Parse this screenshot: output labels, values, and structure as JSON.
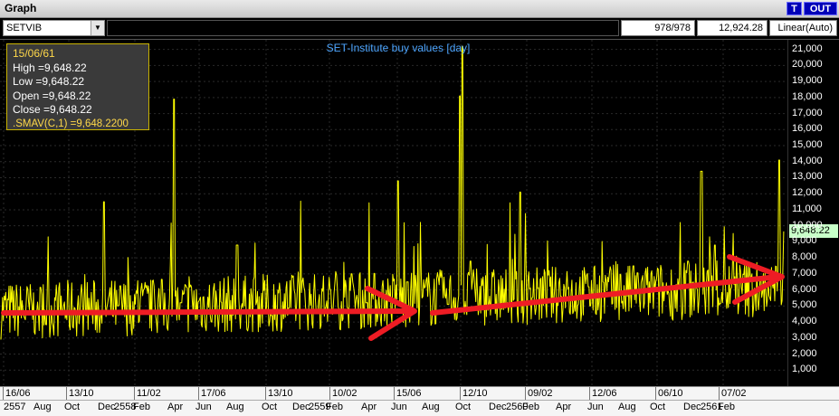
{
  "window": {
    "title": "Graph",
    "btn_t": "T",
    "btn_out": "OUT"
  },
  "toolbar": {
    "symbol": "SETVIB",
    "count": "978/978",
    "value": "12,924.28",
    "scale": "Linear(Auto)"
  },
  "info_box": {
    "date": "15/06/61",
    "high": "High  =9,648.22",
    "low": "Low  =9,648.22",
    "open": "Open  =9,648.22",
    "close": "Close  =9,648.22",
    "smav": ".SMAV(C,1)   =9,648.2200"
  },
  "colors": {
    "series": "#ffff00",
    "arrow": "#ee1c24",
    "title": "#4ea6ff",
    "last_value_bg": "#c8ffc8"
  },
  "chart_data": {
    "type": "line",
    "title": "SET-Institute buy values [day]",
    "ylim": [
      0,
      21600
    ],
    "y_ticks": [
      "1,000",
      "2,000",
      "3,000",
      "4,000",
      "5,000",
      "6,000",
      "7,000",
      "8,000",
      "9,000",
      "10,000",
      "11,000",
      "12,000",
      "13,000",
      "14,000",
      "15,000",
      "16,000",
      "17,000",
      "18,000",
      "19,000",
      "20,000",
      "21,000"
    ],
    "last_value": 9648.22,
    "last_value_label": "9,648.22",
    "x_labels_top": [
      "16/06",
      "13/10",
      "11/02",
      "17/06",
      "13/10",
      "10/02",
      "15/06",
      "12/10",
      "09/02",
      "12/06",
      "06/10",
      "07/02"
    ],
    "x_labels_bottom": [
      "2557",
      "Aug",
      "Oct",
      "Dec",
      "2558",
      "Feb",
      "Apr",
      "Jun",
      "Aug",
      "Oct",
      "Dec",
      "2559",
      "Feb",
      "Apr",
      "Jun",
      "Aug",
      "Oct",
      "Dec",
      "2560",
      "Feb",
      "Apr",
      "Jun",
      "Aug",
      "Oct",
      "Dec",
      "2561",
      "Feb"
    ],
    "annotations": [
      "arrow-left-segment",
      "arrow-right-segment"
    ],
    "grid": true,
    "points_count": 978,
    "series": [
      {
        "color": "#ffff00",
        "anchors": [
          [
            0,
            4500
          ],
          [
            40,
            4600
          ],
          [
            95,
            4400
          ],
          [
            115,
            11500
          ],
          [
            130,
            5000
          ],
          [
            192,
            17900
          ],
          [
            200,
            5200
          ],
          [
            262,
            8800
          ],
          [
            300,
            4400
          ],
          [
            350,
            4700
          ],
          [
            405,
            5200
          ],
          [
            440,
            12800
          ],
          [
            450,
            6500
          ],
          [
            495,
            5100
          ],
          [
            508,
            18100
          ],
          [
            511,
            21200
          ],
          [
            520,
            7800
          ],
          [
            560,
            5200
          ],
          [
            575,
            12100
          ],
          [
            620,
            5600
          ],
          [
            650,
            6200
          ],
          [
            700,
            7500
          ],
          [
            760,
            7800
          ],
          [
            775,
            13400
          ],
          [
            790,
            8800
          ],
          [
            840,
            6800
          ],
          [
            861,
            14100
          ],
          [
            866,
            9648
          ]
        ]
      }
    ]
  }
}
